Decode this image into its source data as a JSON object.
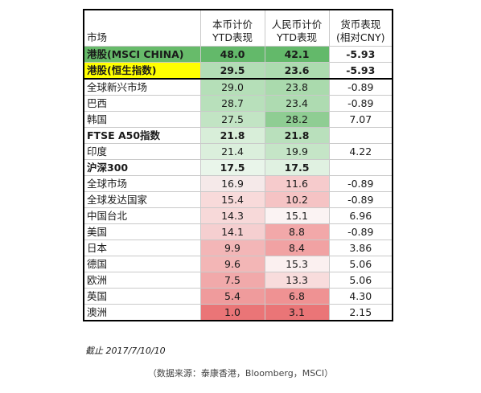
{
  "headers": {
    "market": "市场",
    "local_line1": "本币计价",
    "local_line2": "YTD表现",
    "rmb_line1": "人民币计价",
    "rmb_line2": "YTD表现",
    "fx_line1": "货币表现",
    "fx_line2": "(相对CNY)"
  },
  "rows": [
    {
      "name": "港股(MSCI CHINA)",
      "local": "48.0",
      "rmb": "42.1",
      "fx": "-5.93",
      "bold": true
    },
    {
      "name": "港股(恒生指数)",
      "local": "29.5",
      "rmb": "23.6",
      "fx": "-5.93",
      "bold": true
    },
    {
      "name": "全球新兴市场",
      "local": "29.0",
      "rmb": "23.8",
      "fx": "-0.89",
      "bold": false
    },
    {
      "name": "巴西",
      "local": "28.7",
      "rmb": "23.4",
      "fx": "-0.89",
      "bold": false
    },
    {
      "name": "韩国",
      "local": "27.5",
      "rmb": "28.2",
      "fx": "7.07",
      "bold": false
    },
    {
      "name": "FTSE A50指数",
      "local": "21.8",
      "rmb": "21.8",
      "fx": "",
      "bold": true
    },
    {
      "name": "印度",
      "local": "21.4",
      "rmb": "19.9",
      "fx": "4.22",
      "bold": false
    },
    {
      "name": "沪深300",
      "local": "17.5",
      "rmb": "17.5",
      "fx": "",
      "bold": true
    },
    {
      "name": "全球市场",
      "local": "16.9",
      "rmb": "11.6",
      "fx": "-0.89",
      "bold": false
    },
    {
      "name": "全球发达国家",
      "local": "15.4",
      "rmb": "10.2",
      "fx": "-0.89",
      "bold": false
    },
    {
      "name": "中国台北",
      "local": "14.3",
      "rmb": "15.1",
      "fx": "6.96",
      "bold": false
    },
    {
      "name": "美国",
      "local": "14.1",
      "rmb": "8.8",
      "fx": "-0.89",
      "bold": false
    },
    {
      "name": "日本",
      "local": "9.9",
      "rmb": "8.4",
      "fx": "3.86",
      "bold": false
    },
    {
      "name": "德国",
      "local": "9.6",
      "rmb": "15.3",
      "fx": "5.06",
      "bold": false
    },
    {
      "name": "欧洲",
      "local": "7.5",
      "rmb": "13.3",
      "fx": "5.06",
      "bold": false
    },
    {
      "name": "英国",
      "local": "5.4",
      "rmb": "6.8",
      "fx": "4.30",
      "bold": false
    },
    {
      "name": "澳洲",
      "local": "1.0",
      "rmb": "3.1",
      "fx": "2.15",
      "bold": false
    }
  ],
  "cell_colors": {
    "local": [
      "#63b96a",
      "#b2ddb5",
      "#b5dfb8",
      "#b8e0bb",
      "#c2e4c4",
      "#d8eed9",
      "#dbefdc",
      "#e9f5ea",
      "#f5e9e9",
      "#f8dada",
      "#f7d9d9",
      "#f5cfd0",
      "#f3b6b7",
      "#f3b6b6",
      "#f1a9aa",
      "#ef9b9c",
      "#ea7577"
    ],
    "rmb": [
      "#63b96a",
      "#acdbaf",
      "#aadaad",
      "#aedbb1",
      "#8fcd93",
      "#b9e0bc",
      "#c5e5c7",
      "#e0f1e1",
      "#f6cbcc",
      "#f5c3c4",
      "#fbf3f3",
      "#f2a8a9",
      "#f1a2a3",
      "#fbf0f0",
      "#f8dcdc",
      "#ef9293",
      "#ea7577"
    ],
    "highlight_yellow": "#ffff00"
  },
  "footer": {
    "date": "截止 2017/7/10/10",
    "source": "（数据来源：泰康香港，Bloomberg，MSCI）"
  }
}
